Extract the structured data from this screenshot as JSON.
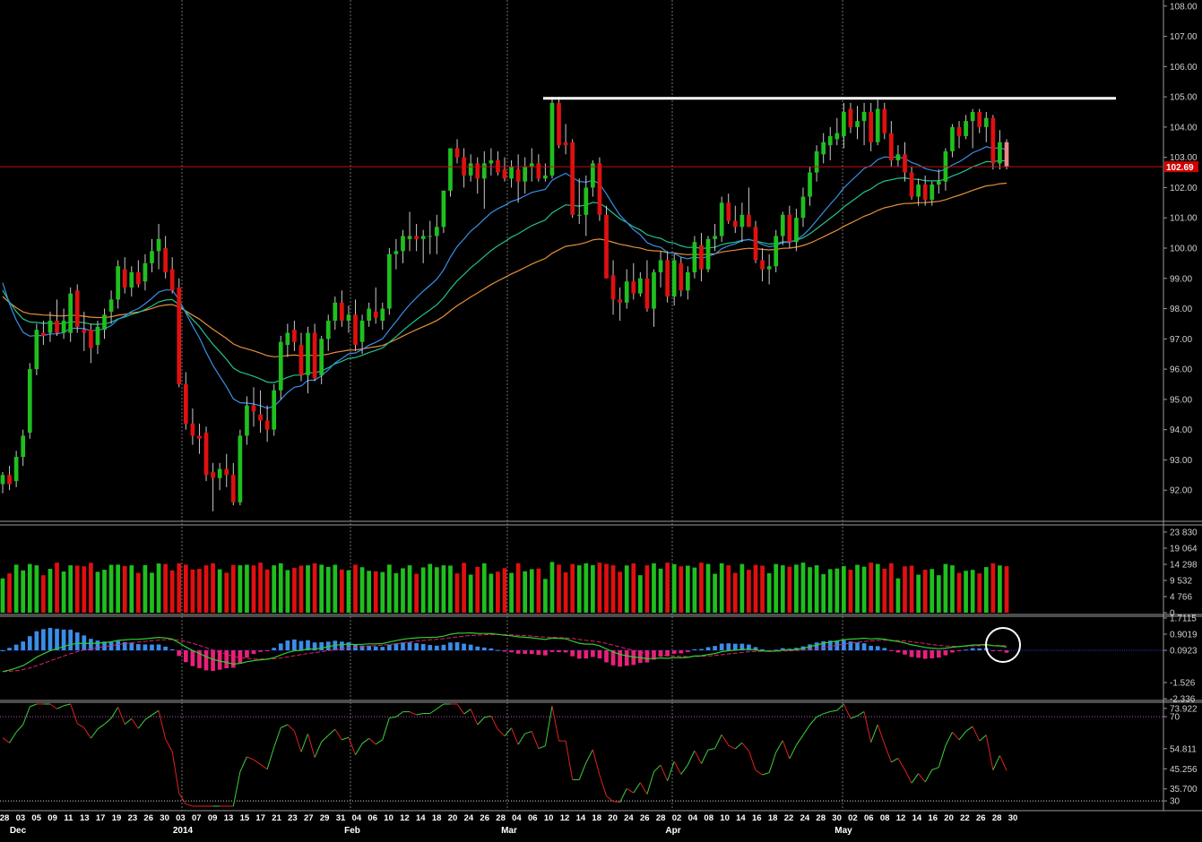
{
  "colors": {
    "background": "#000000",
    "up_candle": "#1fbf1f",
    "down_candle": "#e01010",
    "wick": "#c8c8c8",
    "grid": "#8a8a8a",
    "axis_text": "#cfcfcf",
    "ma_fast": "#3a8fe8",
    "ma_mid": "#22c28a",
    "ma_slow": "#e58f3a",
    "resistance": "#ffffff",
    "price_line": "#c41010",
    "price_tag_bg": "#d00000",
    "macd_line": "#2fcf2f",
    "signal_line": "#e0206a",
    "hist_pos": "#3b8de8",
    "hist_neg": "#e8207a",
    "zero_line": "#2233cc",
    "rsi_up": "#3fcf3f",
    "rsi_down": "#e02020",
    "rsi_level": "#c050c0",
    "circle": "#ffffff"
  },
  "chart_data": [
    {
      "panel": "price",
      "type": "candlestick",
      "y_ticks": [
        "108.00",
        "107.00",
        "106.00",
        "105.00",
        "104.00",
        "103.00",
        "102.00",
        "101.00",
        "100.00",
        "99.00",
        "98.00",
        "97.00",
        "96.00",
        "95.00",
        "94.00",
        "93.00",
        "92.00"
      ],
      "ylim": [
        91.0,
        108.2
      ],
      "last_price_label": "102.69",
      "last_price": 102.69,
      "resistance_level": 104.95,
      "resistance_from_bar": 81,
      "candles": [
        [
          92.2,
          92.6,
          91.9,
          92.5
        ],
        [
          92.5,
          92.8,
          92.0,
          92.2
        ],
        [
          92.3,
          93.3,
          92.1,
          93.1
        ],
        [
          93.1,
          94.0,
          92.8,
          93.8
        ],
        [
          93.9,
          96.2,
          93.7,
          96.0
        ],
        [
          96.0,
          97.5,
          95.8,
          97.3
        ],
        [
          97.2,
          97.6,
          96.8,
          97.1
        ],
        [
          97.2,
          97.9,
          96.9,
          97.6
        ],
        [
          97.6,
          98.3,
          97.1,
          97.2
        ],
        [
          97.2,
          98.0,
          97.0,
          97.6
        ],
        [
          97.2,
          98.7,
          96.9,
          98.5
        ],
        [
          98.6,
          98.8,
          97.2,
          97.4
        ],
        [
          97.3,
          97.9,
          96.6,
          97.2
        ],
        [
          97.3,
          97.5,
          96.2,
          96.7
        ],
        [
          96.8,
          97.6,
          96.5,
          97.4
        ],
        [
          97.3,
          98.0,
          97.0,
          97.8
        ],
        [
          97.9,
          98.6,
          97.5,
          98.3
        ],
        [
          98.3,
          99.6,
          98.0,
          99.4
        ],
        [
          99.3,
          99.7,
          98.5,
          98.7
        ],
        [
          98.7,
          99.4,
          98.4,
          99.2
        ],
        [
          99.2,
          99.6,
          98.7,
          98.8
        ],
        [
          98.9,
          99.8,
          98.6,
          99.5
        ],
        [
          99.5,
          100.3,
          99.2,
          99.9
        ],
        [
          99.9,
          100.8,
          99.3,
          100.3
        ],
        [
          100.0,
          100.4,
          99.0,
          99.2
        ],
        [
          99.3,
          99.7,
          98.5,
          98.6
        ],
        [
          98.7,
          99.0,
          95.4,
          95.5
        ],
        [
          95.5,
          95.9,
          94.0,
          94.2
        ],
        [
          94.2,
          94.7,
          93.5,
          93.8
        ],
        [
          93.8,
          94.2,
          93.2,
          93.7
        ],
        [
          93.9,
          94.1,
          92.3,
          92.5
        ],
        [
          92.6,
          92.9,
          91.3,
          92.4
        ],
        [
          92.4,
          92.9,
          92.0,
          92.7
        ],
        [
          92.7,
          93.2,
          92.1,
          92.5
        ],
        [
          92.5,
          92.9,
          91.5,
          91.6
        ],
        [
          91.6,
          94.0,
          91.5,
          93.8
        ],
        [
          93.8,
          95.1,
          93.5,
          94.8
        ],
        [
          94.8,
          95.4,
          94.1,
          94.6
        ],
        [
          94.5,
          95.3,
          93.9,
          94.3
        ],
        [
          94.3,
          94.8,
          93.6,
          94.0
        ],
        [
          94.0,
          95.5,
          93.8,
          95.3
        ],
        [
          95.3,
          97.1,
          95.0,
          96.9
        ],
        [
          96.8,
          97.5,
          96.4,
          97.2
        ],
        [
          97.3,
          97.6,
          96.6,
          96.9
        ],
        [
          96.8,
          97.2,
          95.6,
          95.8
        ],
        [
          95.8,
          97.4,
          95.2,
          97.2
        ],
        [
          97.2,
          97.5,
          95.6,
          95.7
        ],
        [
          95.8,
          97.1,
          95.5,
          97.0
        ],
        [
          97.0,
          97.8,
          96.6,
          97.6
        ],
        [
          97.6,
          98.4,
          97.3,
          98.2
        ],
        [
          98.2,
          98.6,
          97.4,
          97.6
        ],
        [
          97.6,
          98.1,
          97.2,
          97.8
        ],
        [
          97.8,
          98.3,
          96.6,
          96.8
        ],
        [
          96.9,
          97.8,
          96.5,
          97.6
        ],
        [
          97.6,
          98.2,
          97.4,
          98.0
        ],
        [
          97.9,
          98.7,
          97.5,
          97.7
        ],
        [
          97.6,
          98.2,
          97.3,
          98.0
        ],
        [
          98.0,
          100.0,
          97.8,
          99.8
        ],
        [
          99.8,
          100.3,
          99.3,
          99.9
        ],
        [
          99.9,
          100.6,
          99.5,
          100.4
        ],
        [
          100.3,
          101.2,
          99.9,
          100.4
        ],
        [
          100.4,
          100.8,
          99.9,
          100.3
        ],
        [
          100.3,
          100.6,
          99.5,
          100.4
        ],
        [
          100.4,
          100.9,
          99.8,
          100.4
        ],
        [
          100.4,
          101.1,
          99.8,
          100.7
        ],
        [
          100.7,
          101.9,
          100.5,
          101.9
        ],
        [
          101.9,
          103.3,
          101.7,
          103.3
        ],
        [
          103.3,
          103.6,
          102.8,
          103.0
        ],
        [
          103.0,
          103.3,
          102.0,
          102.4
        ],
        [
          102.4,
          103.1,
          102.2,
          102.8
        ],
        [
          102.8,
          103.0,
          101.8,
          102.3
        ],
        [
          102.3,
          103.2,
          101.3,
          102.8
        ],
        [
          102.8,
          103.3,
          102.4,
          102.9
        ],
        [
          102.9,
          103.2,
          102.4,
          102.5
        ],
        [
          102.6,
          103.0,
          102.2,
          102.3
        ],
        [
          102.3,
          102.9,
          102.0,
          102.7
        ],
        [
          102.6,
          103.1,
          101.5,
          102.2
        ],
        [
          102.2,
          103.0,
          101.8,
          102.7
        ],
        [
          102.7,
          103.3,
          102.2,
          102.8
        ],
        [
          102.8,
          103.1,
          102.2,
          102.3
        ],
        [
          102.3,
          102.8,
          102.2,
          102.4
        ],
        [
          102.4,
          105.0,
          102.3,
          104.8
        ],
        [
          104.8,
          105.0,
          103.3,
          103.4
        ],
        [
          103.5,
          104.1,
          103.1,
          103.4
        ],
        [
          103.5,
          103.6,
          101.0,
          101.1
        ],
        [
          101.1,
          102.3,
          100.8,
          101.1
        ],
        [
          101.1,
          102.4,
          100.4,
          102.0
        ],
        [
          102.0,
          102.9,
          101.7,
          102.8
        ],
        [
          102.8,
          103.0,
          100.9,
          101.1
        ],
        [
          101.1,
          101.4,
          99.0,
          99.0
        ],
        [
          99.1,
          99.6,
          97.8,
          98.3
        ],
        [
          98.3,
          98.7,
          97.6,
          98.2
        ],
        [
          98.2,
          99.3,
          98.0,
          98.9
        ],
        [
          98.9,
          99.5,
          98.3,
          98.5
        ],
        [
          98.5,
          99.2,
          98.4,
          99.0
        ],
        [
          99.0,
          99.6,
          97.9,
          98.0
        ],
        [
          98.0,
          99.3,
          97.4,
          99.2
        ],
        [
          99.2,
          99.9,
          98.7,
          99.6
        ],
        [
          99.6,
          99.9,
          98.2,
          98.4
        ],
        [
          98.4,
          99.8,
          98.1,
          99.6
        ],
        [
          99.5,
          99.7,
          98.4,
          98.6
        ],
        [
          98.6,
          99.4,
          98.3,
          99.2
        ],
        [
          99.2,
          100.4,
          99.0,
          100.2
        ],
        [
          100.1,
          100.5,
          98.9,
          99.3
        ],
        [
          99.3,
          100.4,
          99.2,
          100.3
        ],
        [
          100.3,
          100.8,
          99.9,
          100.4
        ],
        [
          100.4,
          101.7,
          100.2,
          101.5
        ],
        [
          101.5,
          101.8,
          100.8,
          100.9
        ],
        [
          100.9,
          101.4,
          100.5,
          100.7
        ],
        [
          100.7,
          101.5,
          100.2,
          101.1
        ],
        [
          101.1,
          102.0,
          100.7,
          100.7
        ],
        [
          100.7,
          100.9,
          99.5,
          99.6
        ],
        [
          99.6,
          100.0,
          98.9,
          99.3
        ],
        [
          99.3,
          99.8,
          98.8,
          99.4
        ],
        [
          99.4,
          100.6,
          99.2,
          100.4
        ],
        [
          100.4,
          101.2,
          100.1,
          101.1
        ],
        [
          101.1,
          101.4,
          100.0,
          100.2
        ],
        [
          100.2,
          101.3,
          99.9,
          101.0
        ],
        [
          101.0,
          102.0,
          100.7,
          101.7
        ],
        [
          101.7,
          102.7,
          101.4,
          102.5
        ],
        [
          102.5,
          103.4,
          102.2,
          103.2
        ],
        [
          103.1,
          103.8,
          102.8,
          103.5
        ],
        [
          103.4,
          104.0,
          102.9,
          103.7
        ],
        [
          103.6,
          104.3,
          103.4,
          103.8
        ],
        [
          103.7,
          104.8,
          103.3,
          104.5
        ],
        [
          104.6,
          104.8,
          103.8,
          104.0
        ],
        [
          104.0,
          104.7,
          103.6,
          104.2
        ],
        [
          104.2,
          104.8,
          103.4,
          104.5
        ],
        [
          104.5,
          104.8,
          103.2,
          103.5
        ],
        [
          103.5,
          104.9,
          103.4,
          104.6
        ],
        [
          104.6,
          104.8,
          103.6,
          103.8
        ],
        [
          103.8,
          104.2,
          102.7,
          102.9
        ],
        [
          102.9,
          103.4,
          102.7,
          103.1
        ],
        [
          103.1,
          103.5,
          102.2,
          102.5
        ],
        [
          102.5,
          102.7,
          101.6,
          101.7
        ],
        [
          101.7,
          102.3,
          101.4,
          102.1
        ],
        [
          102.1,
          102.4,
          101.4,
          101.6
        ],
        [
          101.6,
          102.2,
          101.4,
          102.1
        ],
        [
          102.1,
          102.6,
          101.8,
          102.2
        ],
        [
          102.2,
          103.3,
          101.9,
          103.2
        ],
        [
          103.2,
          104.1,
          103.0,
          104.0
        ],
        [
          104.0,
          104.2,
          103.3,
          103.7
        ],
        [
          103.7,
          104.4,
          103.6,
          104.2
        ],
        [
          104.2,
          104.6,
          103.3,
          104.5
        ],
        [
          104.5,
          104.6,
          103.8,
          104.0
        ],
        [
          104.0,
          104.5,
          103.5,
          104.3
        ],
        [
          104.3,
          104.4,
          102.6,
          102.8
        ],
        [
          102.8,
          103.9,
          102.6,
          103.5
        ],
        [
          103.5,
          103.6,
          102.6,
          102.69
        ]
      ],
      "x_date_labels": [
        "28",
        "03",
        "05",
        "09",
        "11",
        "13",
        "17",
        "19",
        "23",
        "26",
        "30",
        "03",
        "07",
        "09",
        "13",
        "15",
        "17",
        "21",
        "23",
        "27",
        "29",
        "31",
        "04",
        "06",
        "10",
        "12",
        "14",
        "18",
        "20",
        "24",
        "26",
        "28",
        "04",
        "06",
        "10",
        "12",
        "14",
        "18",
        "20",
        "24",
        "26",
        "28",
        "02",
        "04",
        "08",
        "10",
        "14",
        "16",
        "18",
        "22",
        "24",
        "28",
        "30",
        "02",
        "06",
        "08",
        "12",
        "14",
        "16",
        "20",
        "22",
        "26",
        "28",
        "30"
      ],
      "x_month_labels": [
        "Dec",
        "2014",
        "Feb",
        "Mar",
        "Apr",
        "May"
      ]
    },
    {
      "panel": "volume",
      "type": "bar",
      "y_ticks": [
        "23 830",
        "19 064",
        "14 298",
        "9 532",
        "4 766",
        "0"
      ],
      "ylim": [
        0,
        23830
      ]
    },
    {
      "panel": "macd",
      "type": "line+histogram",
      "y_ticks": [
        "1.7115",
        "0.9019",
        "0.0923",
        "-1.526",
        "-2.336"
      ],
      "ylim": [
        -2.336,
        1.7115
      ]
    },
    {
      "panel": "rsi",
      "type": "line",
      "y_ticks": [
        "73.922",
        "70",
        "54.811",
        "45.256",
        "35.700",
        "30"
      ],
      "levels": [
        70,
        30
      ],
      "ylim": [
        27.5,
        76
      ]
    }
  ]
}
